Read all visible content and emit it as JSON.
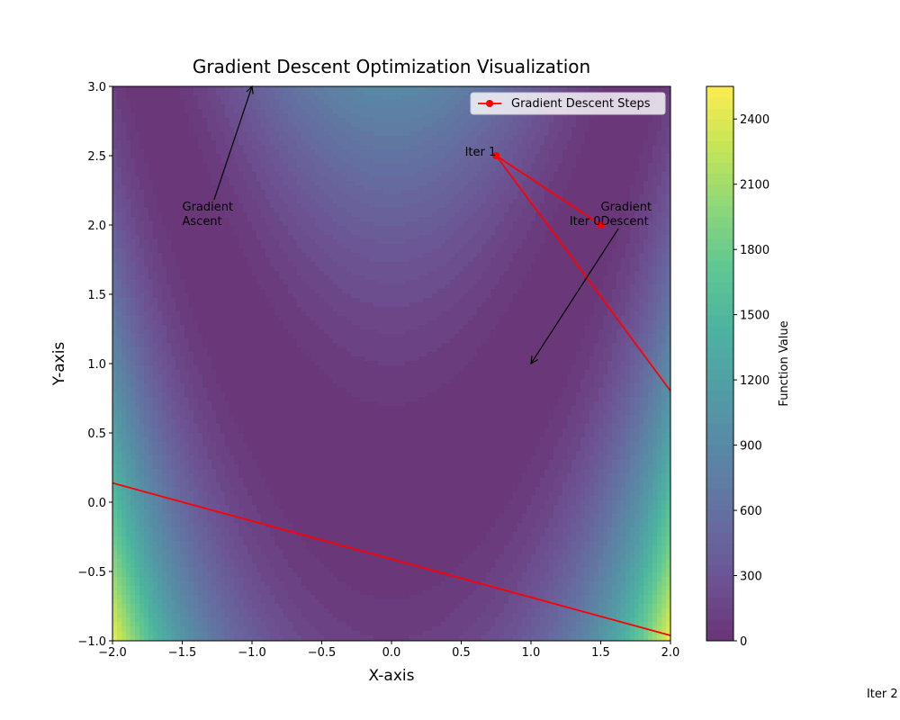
{
  "chart_data": {
    "type": "contour",
    "title": "Gradient Descent Optimization Visualization",
    "xlabel": "X-axis",
    "ylabel": "Y-axis",
    "xlim": [
      -2,
      2
    ],
    "ylim": [
      -1,
      3
    ],
    "xticks": [
      {
        "value": -2,
        "label": "−2.0"
      },
      {
        "value": -1.5,
        "label": "−1.5"
      },
      {
        "value": -1,
        "label": "−1.0"
      },
      {
        "value": -0.5,
        "label": "−0.5"
      },
      {
        "value": 0,
        "label": "0.0"
      },
      0.5,
      {
        "value": 1,
        "label": "1.0"
      },
      1.5,
      {
        "value": 2,
        "label": "2.0"
      }
    ],
    "yticks": [
      {
        "value": -1,
        "label": "−1.0"
      },
      {
        "value": -0.5,
        "label": "−0.5"
      },
      {
        "value": 0,
        "label": "0.0"
      },
      0.5,
      {
        "value": 1,
        "label": "1.0"
      },
      1.5,
      {
        "value": 2,
        "label": "2.0"
      },
      2.5,
      {
        "value": 3,
        "label": "3.0"
      }
    ],
    "colormap": "viridis",
    "alpha": 0.8,
    "colorbar": {
      "label": "Function Value",
      "clim": [
        0,
        2550
      ],
      "ticks": [
        0,
        300,
        600,
        900,
        1200,
        1500,
        1800,
        2100,
        2400
      ]
    },
    "series": [
      {
        "name": "Gradient Descent Steps",
        "color": "#ff0000",
        "x": [
          1.5,
          0.75,
          3.63,
          -10
        ],
        "y": [
          2.0,
          2.5,
          -1.41,
          2.34
        ],
        "labels": [
          "Iter 0",
          "Iter 1",
          "Iter 2",
          null
        ]
      }
    ],
    "annotations": [
      {
        "lines": [
          "Gradient",
          "Ascent"
        ],
        "x": -1.5,
        "y": 2.0,
        "arrow_to": [
          -1,
          3
        ]
      },
      {
        "lines": [
          "Gradient",
          "Descent"
        ],
        "x": 1.5,
        "y": 2.0,
        "arrow_to": [
          1,
          1
        ]
      }
    ],
    "legend": "upper right"
  }
}
